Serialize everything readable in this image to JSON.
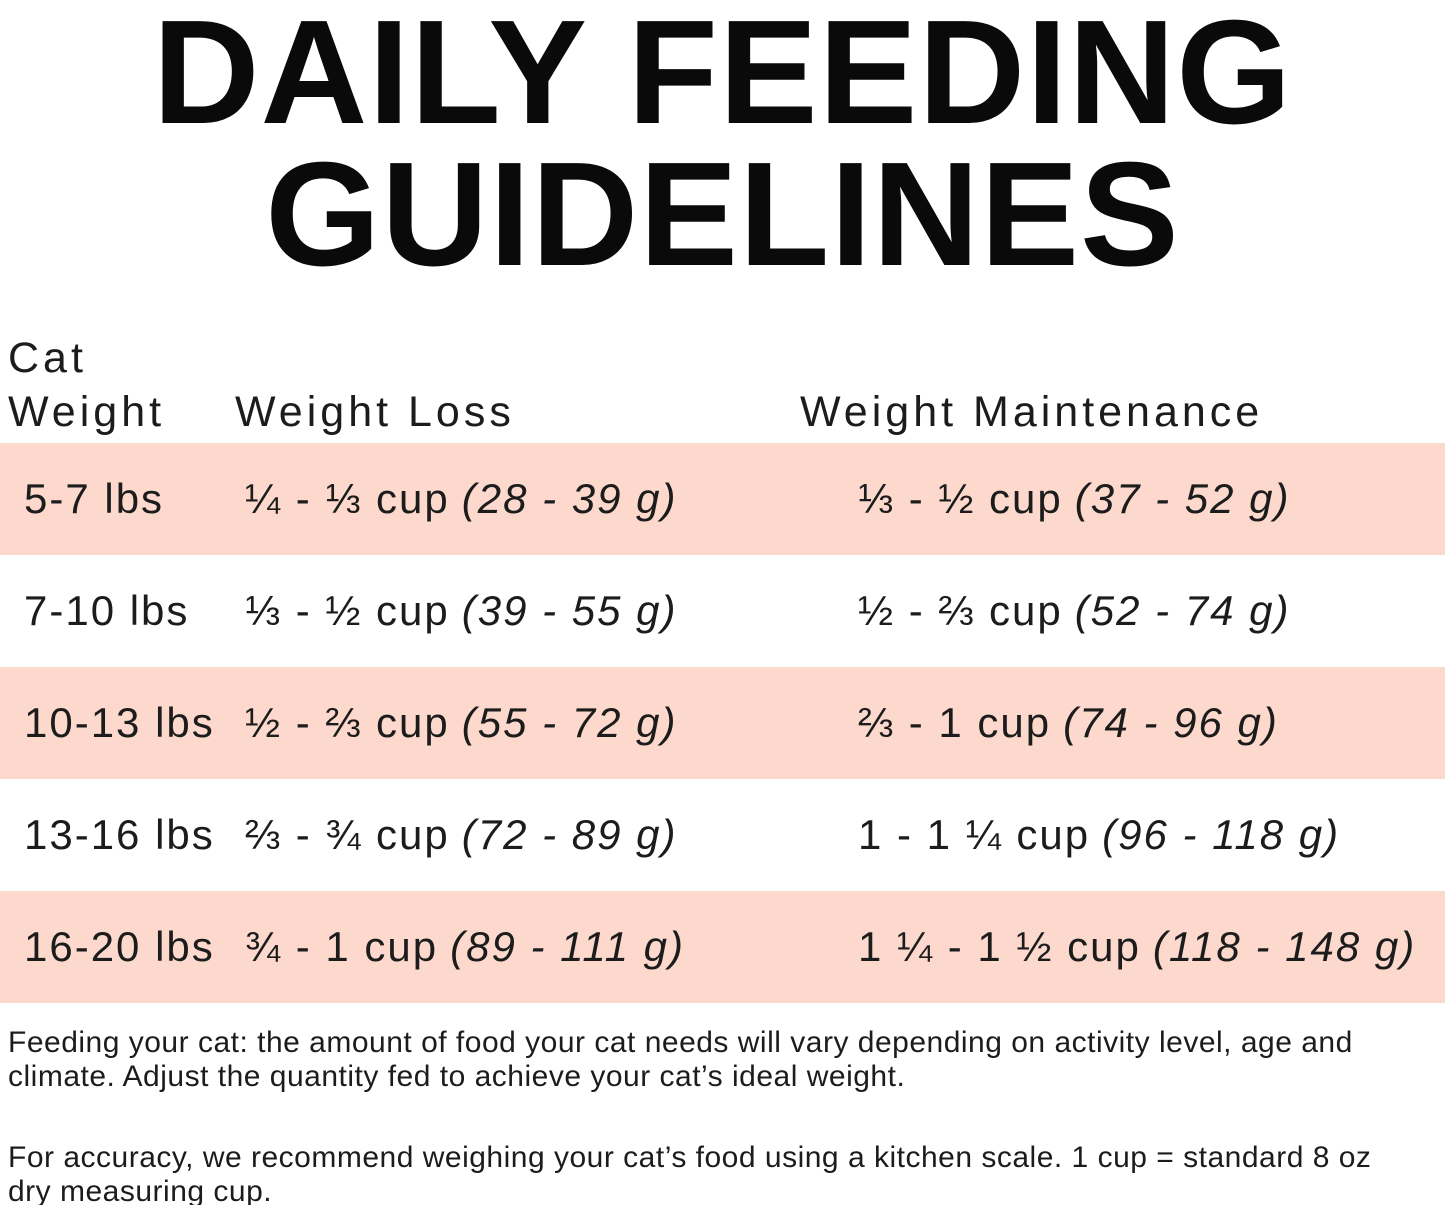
{
  "title": {
    "line1": "DAILY FEEDING",
    "line2": "GUIDELINES"
  },
  "colors": {
    "stripe_pink": "#fcd9cc",
    "text": "#1c1c1c",
    "title_black": "#0a0a0a",
    "background": "#ffffff"
  },
  "table": {
    "headers": {
      "cat_weight_line1": "Cat",
      "cat_weight_line2": "Weight",
      "weight_loss": "Weight Loss",
      "weight_maintenance": "Weight Maintenance"
    },
    "rows": [
      {
        "weight": "5-7 lbs",
        "loss_cups": "¼ - ⅓ cup",
        "loss_grams": "(28 - 39 g)",
        "maint_cups": "⅓ - ½ cup",
        "maint_grams": "(37 - 52 g)"
      },
      {
        "weight": "7-10 lbs",
        "loss_cups": "⅓ - ½ cup",
        "loss_grams": "(39 - 55 g)",
        "maint_cups": "½ - ⅔ cup",
        "maint_grams": "(52 - 74 g)"
      },
      {
        "weight": "10-13 lbs",
        "loss_cups": "½ - ⅔ cup",
        "loss_grams": "(55 - 72 g)",
        "maint_cups": "⅔ - 1 cup",
        "maint_grams": "(74 - 96 g)"
      },
      {
        "weight": "13-16 lbs",
        "loss_cups": "⅔ - ¾ cup",
        "loss_grams": "(72 - 89 g)",
        "maint_cups": "1 - 1 ¼ cup",
        "maint_grams": "(96 - 118 g)"
      },
      {
        "weight": "16-20 lbs",
        "loss_cups": "¾ - 1 cup",
        "loss_grams": "(89 - 111 g)",
        "maint_cups": "1 ¼ - 1 ½ cup",
        "maint_grams": "(118 - 148 g)"
      }
    ]
  },
  "footer": {
    "para1_line1": "Feeding your cat: the amount of food your cat needs will vary depending on activity level, age and",
    "para1_line2": "climate. Adjust the quantity fed to achieve your cat’s ideal weight.",
    "para2_line1": "For accuracy, we recommend weighing your cat’s food using a kitchen scale. 1 cup = standard 8 oz",
    "para2_line2": "dry measuring cup."
  }
}
